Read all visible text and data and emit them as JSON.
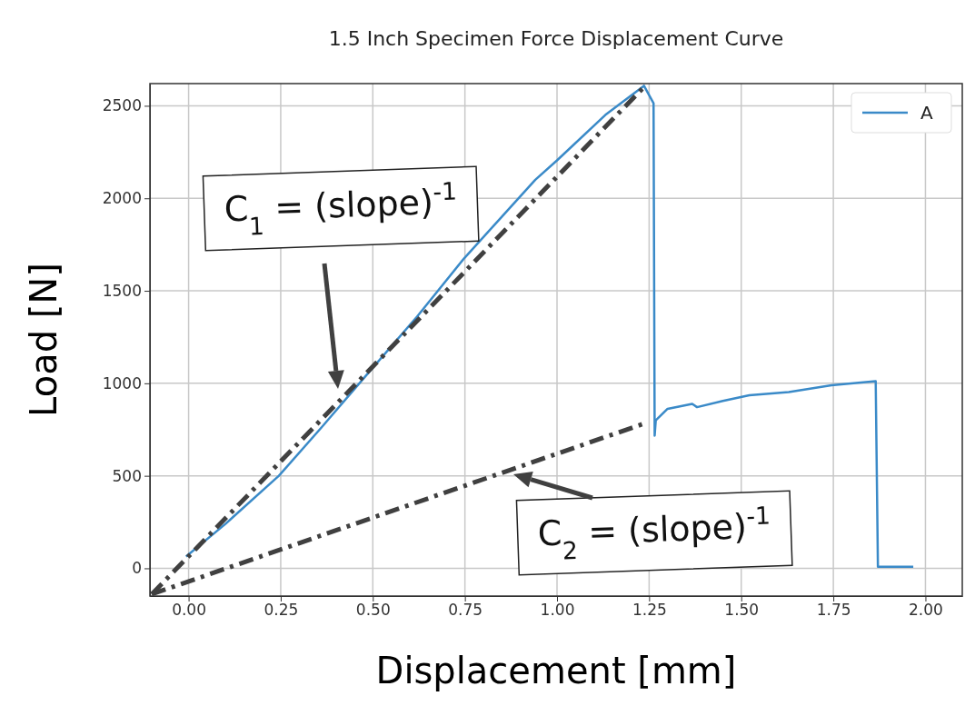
{
  "chart_data": {
    "type": "line",
    "title": "1.5 Inch Specimen Force Displacement Curve",
    "xlabel": "Displacement [mm]",
    "ylabel": "Load [N]",
    "xlim": [
      -0.105,
      2.1
    ],
    "xticks": [
      {
        "value": 0,
        "label": "0.00"
      },
      {
        "value": 0.25,
        "label": "0.25"
      },
      {
        "value": 0.5,
        "label": "0.50"
      },
      {
        "value": 0.75,
        "label": "0.75"
      },
      {
        "value": 1,
        "label": "1.00"
      },
      {
        "value": 1.25,
        "label": "1.25"
      },
      {
        "value": 1.5,
        "label": "1.50"
      },
      {
        "value": 1.75,
        "label": "1.75"
      },
      {
        "value": 2,
        "label": "2.00"
      }
    ],
    "ylim": [
      -150,
      2620
    ],
    "yticks": [
      0,
      500,
      1000,
      1500,
      2000,
      2500
    ],
    "grid": true,
    "legend": "top right",
    "series": [
      {
        "name": "A",
        "color": "#3a8ac8",
        "line_style": "solid",
        "x": [
          -0.007,
          0.1,
          0.245,
          0.36,
          0.482,
          0.62,
          0.749,
          0.85,
          0.941,
          1.0,
          1.131,
          1.236,
          1.262,
          1.265,
          1.268,
          1.3,
          1.367,
          1.38,
          1.45,
          1.522,
          1.629,
          1.745,
          1.865,
          1.871,
          1.967
        ],
        "values": [
          64,
          240,
          500,
          760,
          1043,
          1360,
          1678,
          1900,
          2100,
          2205,
          2450,
          2608,
          2514,
          717,
          800,
          862,
          889,
          871,
          905,
          935,
          953,
          989,
          1011,
          9,
          9
        ]
      },
      {
        "color": "#404040",
        "line_style": "dashed",
        "x": [
          -0.1,
          1.233
        ],
        "values": [
          -140,
          2595
        ]
      },
      {
        "color": "#404040",
        "line_style": "dashed",
        "x": [
          -0.1,
          1.233
        ],
        "values": [
          -140,
          780
        ]
      }
    ],
    "annotations": [
      "C$_{1}$ = (slope)$^{-1}$",
      "C$_{2}$ = (slope)$^{-1}$"
    ]
  }
}
